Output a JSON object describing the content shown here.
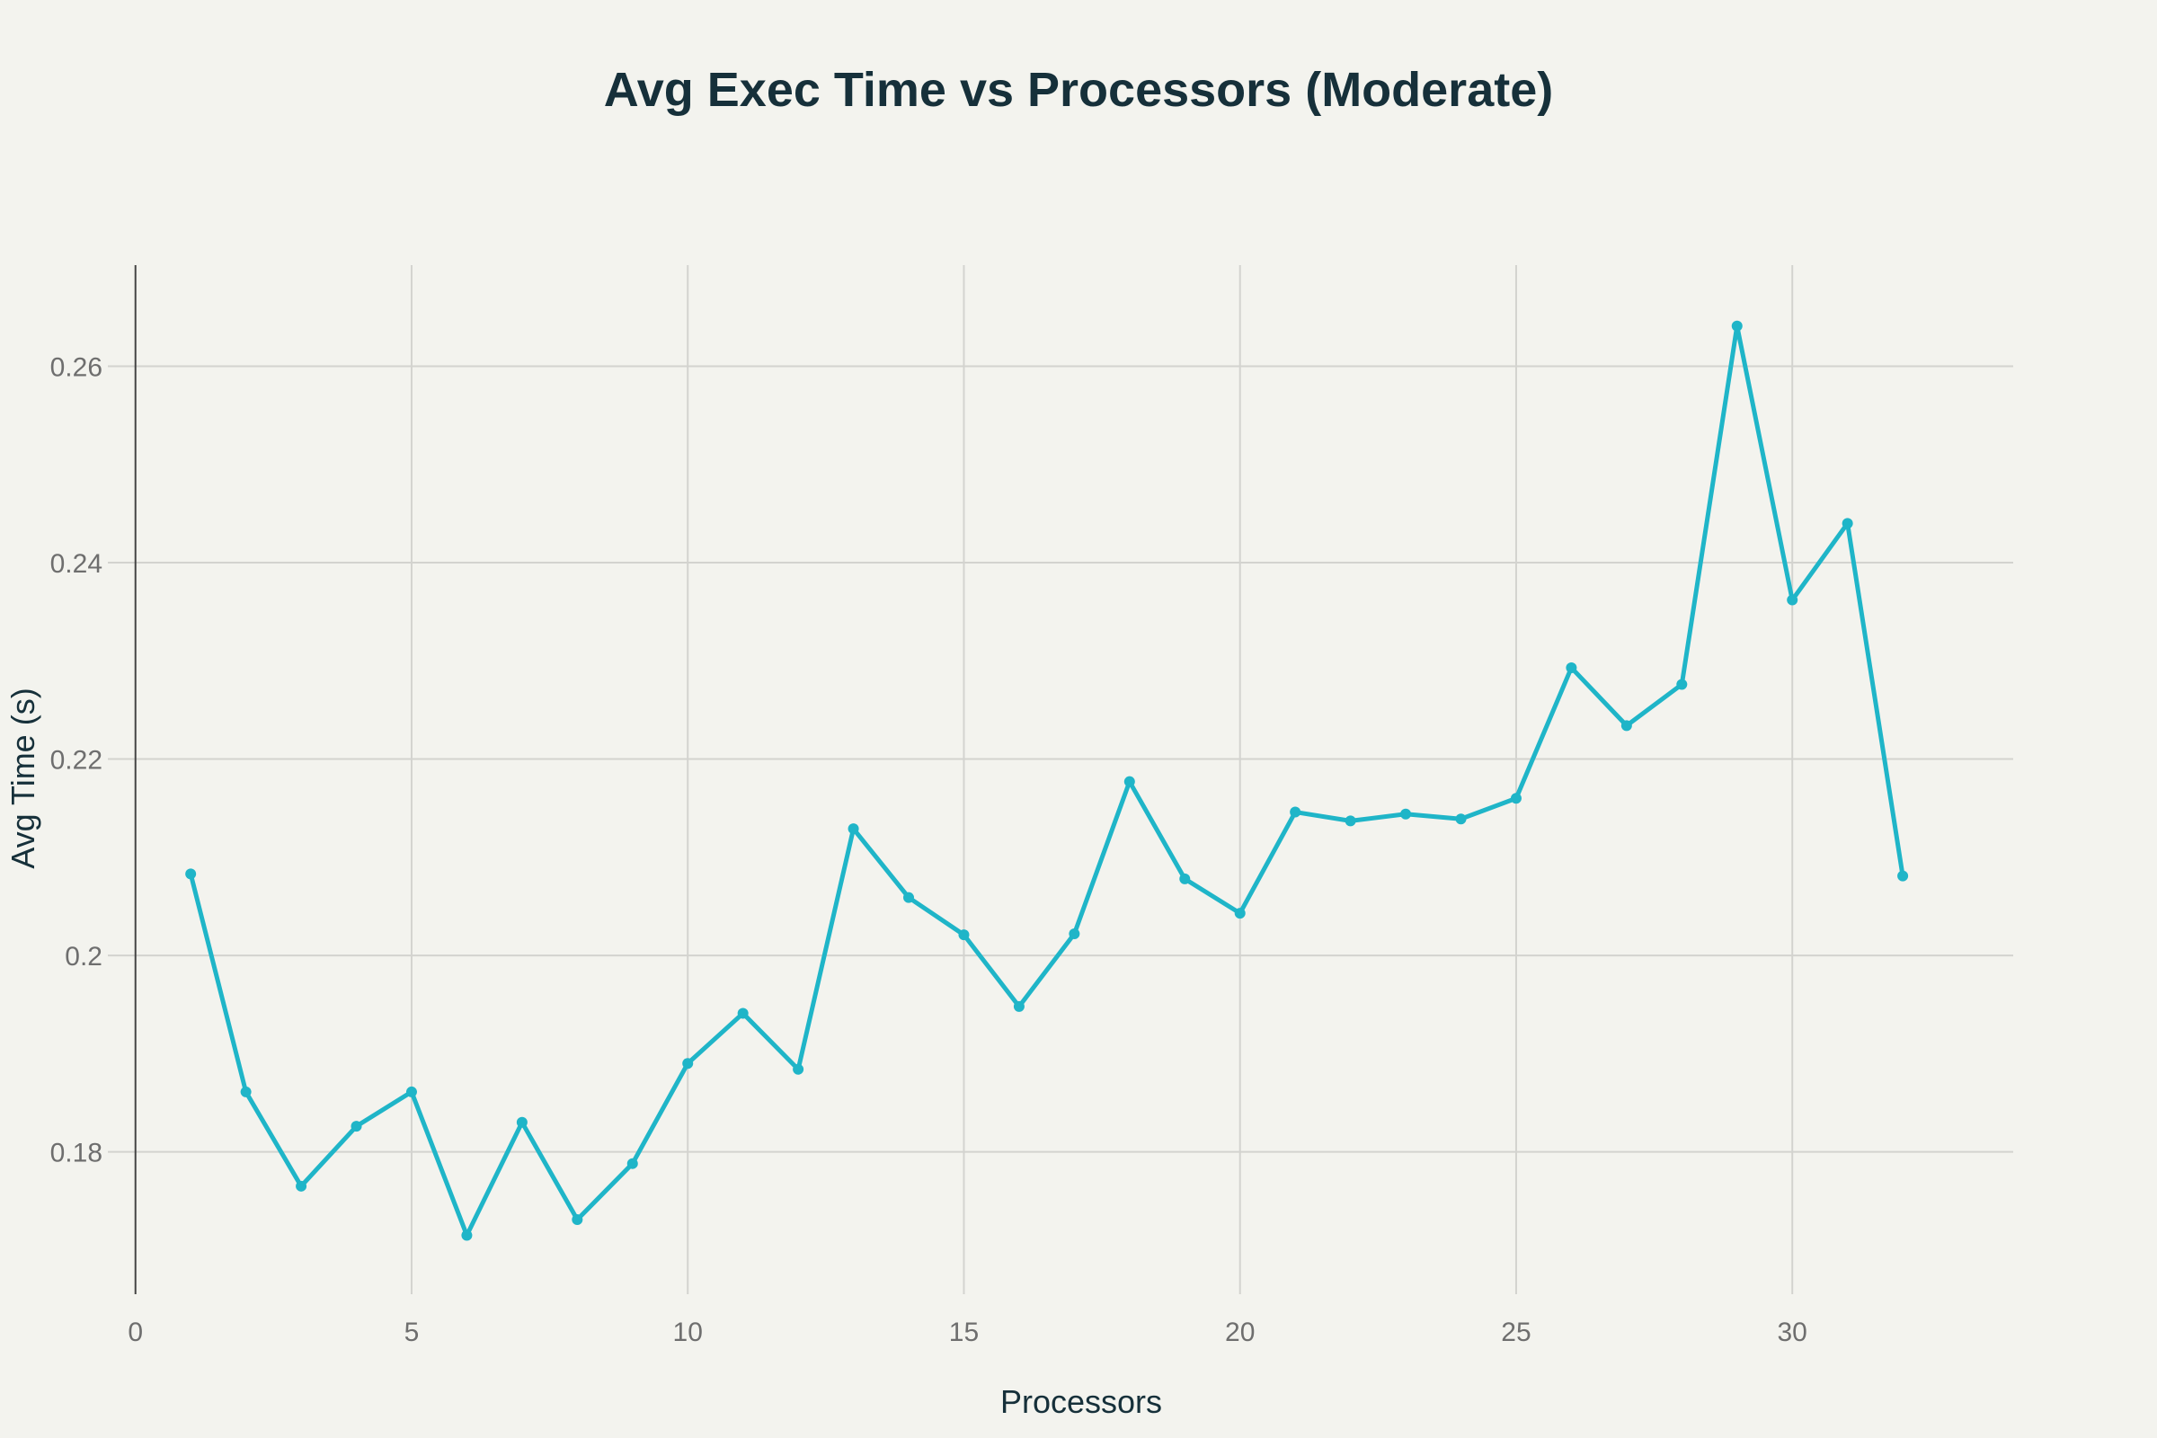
{
  "chart_data": {
    "type": "line",
    "title": "Avg Exec Time vs Processors (Moderate)",
    "xlabel": "Processors",
    "ylabel": "Avg Time (s)",
    "xlim": [
      -0.5,
      34
    ],
    "ylim": [
      0.1655,
      0.2703
    ],
    "x_ticks": [
      0,
      5,
      10,
      15,
      20,
      25,
      30
    ],
    "y_ticks": [
      0.18,
      0.2,
      0.22,
      0.24,
      0.26
    ],
    "x_tick_labels": [
      "0",
      "5",
      "10",
      "15",
      "20",
      "25",
      "30"
    ],
    "y_tick_labels": [
      "0.18",
      "0.2",
      "0.22",
      "0.24",
      "0.26"
    ],
    "grid": true,
    "series": [
      {
        "x": [
          1,
          2,
          3,
          4,
          5,
          6,
          7,
          8,
          9,
          10,
          11,
          12,
          13,
          14,
          15,
          16,
          17,
          18,
          19,
          20,
          21,
          22,
          23,
          24,
          25,
          26,
          27,
          28,
          29,
          30,
          31,
          32
        ],
        "values": [
          0.2083,
          0.1861,
          0.1765,
          0.1826,
          0.1861,
          0.1715,
          0.183,
          0.1731,
          0.1788,
          0.189,
          0.1941,
          0.1884,
          0.2129,
          0.2059,
          0.2021,
          0.1948,
          0.2022,
          0.2177,
          0.2078,
          0.2043,
          0.2146,
          0.2137,
          0.2144,
          0.2139,
          0.216,
          0.2293,
          0.2234,
          0.2276,
          0.2641,
          0.2362,
          0.244,
          0.2081
        ]
      }
    ]
  },
  "colors": {
    "background": "#f3f3ee",
    "series": "#1fb5c8",
    "title": "#16303a",
    "tick": "#6e6e6e",
    "grid": "#d3d3cf",
    "axis": "#444444"
  }
}
